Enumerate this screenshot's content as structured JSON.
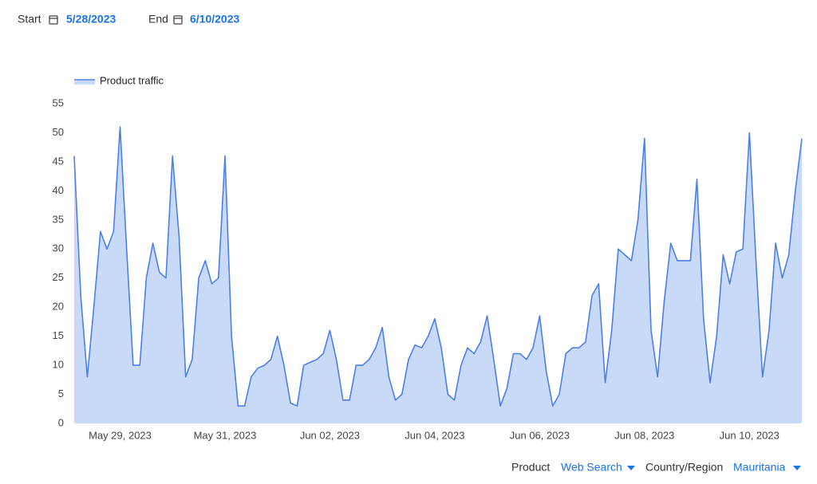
{
  "controls": {
    "start_label": "Start",
    "start_value": "5/28/2023",
    "end_label": "End",
    "end_value": "6/10/2023"
  },
  "filters": {
    "product_label": "Product",
    "product_value": "Web Search",
    "region_label": "Country/Region",
    "region_value": "Mauritania"
  },
  "chart_data": {
    "type": "area",
    "categories": [
      null,
      null,
      null,
      null,
      null,
      null,
      null,
      "May 29, 2023",
      null,
      null,
      null,
      null,
      null,
      null,
      null,
      null,
      null,
      null,
      null,
      null,
      null,
      null,
      null,
      "May 31, 2023",
      null,
      null,
      null,
      null,
      null,
      null,
      null,
      null,
      null,
      null,
      null,
      null,
      null,
      null,
      null,
      "Jun 02, 2023",
      null,
      null,
      null,
      null,
      null,
      null,
      null,
      null,
      null,
      null,
      null,
      null,
      null,
      null,
      null,
      "Jun 04, 2023",
      null,
      null,
      null,
      null,
      null,
      null,
      null,
      null,
      null,
      null,
      null,
      null,
      null,
      null,
      null,
      "Jun 06, 2023",
      null,
      null,
      null,
      null,
      null,
      null,
      null,
      null,
      null,
      null,
      null,
      null,
      null,
      null,
      null,
      "Jun 08, 2023",
      null,
      null,
      null,
      null,
      null,
      null,
      null,
      null,
      null,
      null,
      null,
      null,
      null,
      null,
      null,
      "Jun 10, 2023",
      null,
      null,
      null,
      null,
      null,
      null,
      null,
      null
    ],
    "series": [
      {
        "name": "Product traffic",
        "color": "#4a80e8",
        "fill": "#c9daf8",
        "values": [
          46,
          22,
          8,
          20,
          33,
          30,
          33,
          51,
          30,
          10,
          10,
          25,
          31,
          26,
          25,
          46,
          32,
          8,
          11,
          25,
          28,
          24,
          25,
          46,
          15,
          3,
          3,
          8,
          9.5,
          10,
          11,
          15,
          10,
          3.5,
          3,
          10,
          10.5,
          11,
          12,
          16,
          11,
          4,
          4,
          10,
          10,
          11,
          13,
          16.5,
          8,
          4,
          5,
          11,
          13.5,
          13,
          15,
          18,
          13,
          5,
          4,
          10,
          13,
          12,
          14,
          18.5,
          11,
          3,
          6,
          12,
          12,
          11,
          13,
          18.5,
          9,
          3,
          5,
          12,
          13,
          13,
          14,
          22,
          24,
          7,
          16,
          30,
          29,
          28,
          35,
          49,
          16,
          8,
          21,
          31,
          28,
          28,
          28,
          42,
          18,
          7,
          15,
          29,
          24,
          29.5,
          30,
          50,
          28,
          8,
          16,
          31,
          25,
          29,
          40,
          49
        ]
      }
    ],
    "ylim": [
      0,
      55
    ],
    "yticks": [
      0,
      5,
      10,
      15,
      20,
      25,
      30,
      35,
      40,
      45,
      50,
      55
    ],
    "grid": false,
    "legend": "top-left"
  }
}
